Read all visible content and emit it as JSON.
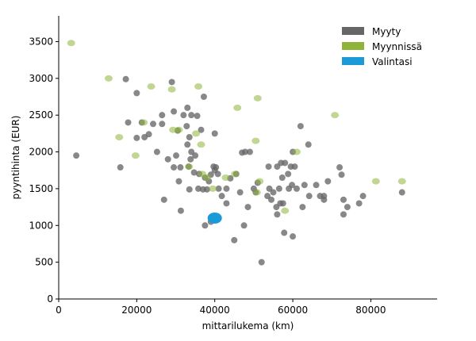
{
  "chart_data": {
    "type": "scatter",
    "xlabel": "mittarilukema (km)",
    "ylabel": "pyyntihinta (EUR)",
    "xlim": [
      0,
      97000
    ],
    "ylim": [
      0,
      3850
    ],
    "x_ticks": [
      0,
      20000,
      40000,
      60000,
      80000
    ],
    "y_ticks": [
      0,
      500,
      1000,
      1500,
      2000,
      2500,
      3000,
      3500
    ],
    "x_tick_labels": [
      "0",
      "20000",
      "40000",
      "60000",
      "80000"
    ],
    "y_tick_labels": [
      "0",
      "500",
      "1000",
      "1500",
      "2000",
      "2500",
      "3000",
      "3500"
    ],
    "grid": false,
    "legend_position": "top-right",
    "legend": [
      {
        "label": "Myyty",
        "color": "#666666"
      },
      {
        "label": "Myynnissä",
        "color": "#8fb43a"
      },
      {
        "label": "Valintasi",
        "color": "#1a9bd7"
      }
    ],
    "series": [
      {
        "name": "Myyty",
        "color": "#666666",
        "points": [
          [
            4500,
            1950
          ],
          [
            15800,
            1790
          ],
          [
            17200,
            2990
          ],
          [
            17800,
            2400
          ],
          [
            20000,
            2800
          ],
          [
            20000,
            2190
          ],
          [
            21300,
            2400
          ],
          [
            22000,
            2200
          ],
          [
            23100,
            2240
          ],
          [
            24200,
            2380
          ],
          [
            25200,
            2000
          ],
          [
            26500,
            2500
          ],
          [
            26500,
            2380
          ],
          [
            27000,
            1350
          ],
          [
            28000,
            1900
          ],
          [
            29000,
            2950
          ],
          [
            29500,
            2550
          ],
          [
            29500,
            1790
          ],
          [
            30100,
            1950
          ],
          [
            30500,
            2290
          ],
          [
            30800,
            1600
          ],
          [
            31200,
            1790
          ],
          [
            31300,
            1200
          ],
          [
            32000,
            2500
          ],
          [
            32800,
            2350
          ],
          [
            33000,
            2600
          ],
          [
            33000,
            2100
          ],
          [
            33300,
            1800
          ],
          [
            33500,
            2200
          ],
          [
            33500,
            1490
          ],
          [
            33800,
            1900
          ],
          [
            34000,
            2500
          ],
          [
            34000,
            2000
          ],
          [
            34700,
            1720
          ],
          [
            35000,
            1950
          ],
          [
            35500,
            2490
          ],
          [
            35800,
            1500
          ],
          [
            36000,
            1700
          ],
          [
            36500,
            2300
          ],
          [
            37000,
            1490
          ],
          [
            37200,
            2750
          ],
          [
            37500,
            1650
          ],
          [
            37500,
            1000
          ],
          [
            38000,
            1490
          ],
          [
            38500,
            1600
          ],
          [
            39000,
            1690
          ],
          [
            39000,
            1050
          ],
          [
            39700,
            1800
          ],
          [
            40000,
            1750
          ],
          [
            40000,
            2250
          ],
          [
            40300,
            1790
          ],
          [
            40800,
            1700
          ],
          [
            41000,
            1500
          ],
          [
            41800,
            1400
          ],
          [
            43000,
            1300
          ],
          [
            43000,
            1500
          ],
          [
            44000,
            1640
          ],
          [
            45000,
            800
          ],
          [
            45500,
            1700
          ],
          [
            46500,
            1450
          ],
          [
            47000,
            1990
          ],
          [
            47500,
            1000
          ],
          [
            47800,
            2000
          ],
          [
            48500,
            1250
          ],
          [
            49000,
            2000
          ],
          [
            50000,
            1500
          ],
          [
            50500,
            1450
          ],
          [
            51000,
            1580
          ],
          [
            52000,
            500
          ],
          [
            53500,
            1400
          ],
          [
            53800,
            1800
          ],
          [
            54000,
            1500
          ],
          [
            54500,
            1350
          ],
          [
            55000,
            1450
          ],
          [
            55800,
            1250
          ],
          [
            56000,
            1150
          ],
          [
            56000,
            1800
          ],
          [
            56500,
            1500
          ],
          [
            56800,
            1300
          ],
          [
            57000,
            1850
          ],
          [
            57300,
            1650
          ],
          [
            57500,
            1300
          ],
          [
            57800,
            900
          ],
          [
            58000,
            1850
          ],
          [
            58800,
            1700
          ],
          [
            59000,
            1500
          ],
          [
            59500,
            1800
          ],
          [
            59800,
            1550
          ],
          [
            60000,
            850
          ],
          [
            60000,
            2000
          ],
          [
            60500,
            1800
          ],
          [
            61000,
            1500
          ],
          [
            62000,
            2350
          ],
          [
            62500,
            1250
          ],
          [
            63000,
            1550
          ],
          [
            64000,
            2100
          ],
          [
            64200,
            1400
          ],
          [
            66000,
            1550
          ],
          [
            67000,
            1400
          ],
          [
            68000,
            1400
          ],
          [
            68000,
            1350
          ],
          [
            69000,
            1600
          ],
          [
            72000,
            1790
          ],
          [
            72500,
            1690
          ],
          [
            73000,
            1350
          ],
          [
            73000,
            1150
          ],
          [
            74000,
            1250
          ],
          [
            77000,
            1300
          ],
          [
            78000,
            1400
          ],
          [
            88000,
            1450
          ]
        ]
      },
      {
        "name": "Myynnissä",
        "color": "#8fb43a",
        "points": [
          [
            3200,
            3480
          ],
          [
            12800,
            3000
          ],
          [
            15500,
            2200
          ],
          [
            19700,
            1950
          ],
          [
            21800,
            2400
          ],
          [
            23700,
            2890
          ],
          [
            29000,
            2850
          ],
          [
            29300,
            2300
          ],
          [
            30800,
            2300
          ],
          [
            33400,
            1800
          ],
          [
            35200,
            2250
          ],
          [
            35800,
            2890
          ],
          [
            36500,
            2100
          ],
          [
            36800,
            1700
          ],
          [
            38000,
            1650
          ],
          [
            39500,
            1500
          ],
          [
            42800,
            1650
          ],
          [
            45200,
            1700
          ],
          [
            45800,
            2600
          ],
          [
            50500,
            2150
          ],
          [
            50800,
            1450
          ],
          [
            51000,
            2730
          ],
          [
            51500,
            1600
          ],
          [
            58000,
            1200
          ],
          [
            61000,
            2000
          ],
          [
            70800,
            2500
          ],
          [
            81300,
            1600
          ],
          [
            88000,
            1600
          ]
        ]
      },
      {
        "name": "Valintasi",
        "color": "#1a9bd7",
        "points": [
          [
            40000,
            1100
          ]
        ]
      }
    ]
  }
}
